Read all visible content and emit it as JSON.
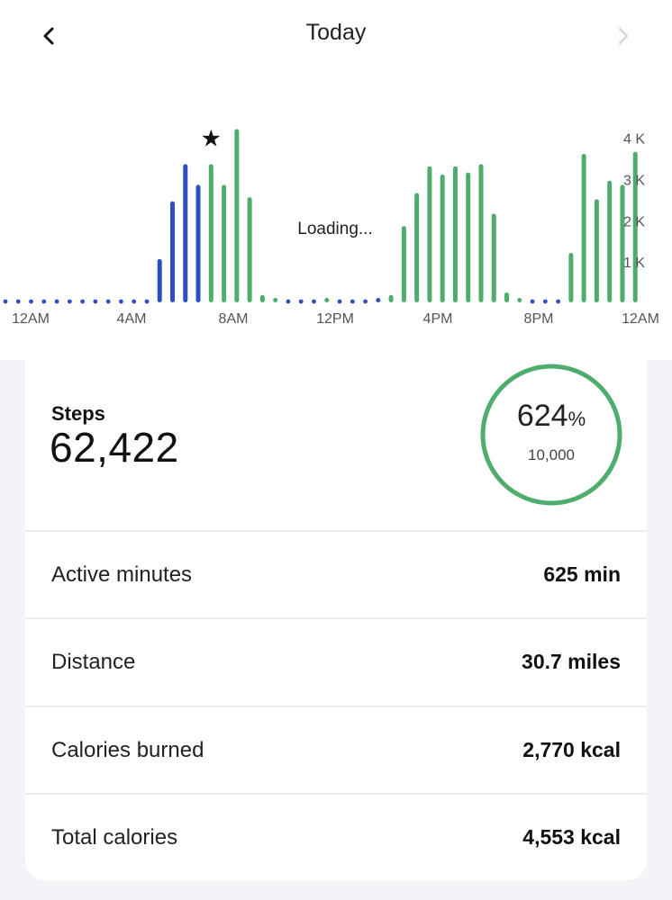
{
  "header": {
    "title": "Today",
    "back_icon": "chevron-left-icon",
    "forward_icon": "chevron-right-icon"
  },
  "chart_data": {
    "type": "bar",
    "title": "",
    "loading_text": "Loading...",
    "x_tick_labels": [
      "12AM",
      "4AM",
      "8AM",
      "12PM",
      "4PM",
      "8PM",
      "12AM"
    ],
    "y_tick_labels": [
      "4 K",
      "3 K",
      "2 K",
      "1 K"
    ],
    "y_ticks": [
      4000,
      3000,
      2000,
      1000
    ],
    "ylim": [
      0,
      4450
    ],
    "x_unit": "half-hour interval of the day (0 = 12AM, 48 = next 12AM)",
    "values": [
      0,
      0,
      0,
      0,
      0,
      0,
      0,
      0,
      0,
      0,
      0,
      0,
      1050,
      2450,
      3350,
      2850,
      3350,
      2850,
      4200,
      2550,
      180,
      90,
      0,
      0,
      0,
      90,
      0,
      0,
      0,
      90,
      180,
      1850,
      2650,
      3300,
      3100,
      3300,
      3150,
      3350,
      2150,
      240,
      90,
      0,
      0,
      0,
      1200,
      3600,
      2500,
      2950,
      2850,
      3650
    ],
    "segments": [
      "blue",
      "blue",
      "blue",
      "blue",
      "blue",
      "blue",
      "blue",
      "blue",
      "blue",
      "blue",
      "blue",
      "blue",
      "blue",
      "blue",
      "blue",
      "blue",
      "green",
      "green",
      "green",
      "green",
      "green",
      "green",
      "blue",
      "blue",
      "blue",
      "green",
      "blue",
      "blue",
      "blue",
      "blue",
      "green",
      "green",
      "green",
      "green",
      "green",
      "green",
      "green",
      "green",
      "green",
      "green",
      "green",
      "blue",
      "blue",
      "blue",
      "green",
      "green",
      "green",
      "green",
      "green",
      "green"
    ],
    "colors": {
      "blue": "#2f4fbf",
      "green": "#4ead6c"
    },
    "star_marker_index": 16,
    "grid": false
  },
  "steps": {
    "label": "Steps",
    "value": "62,422",
    "goal_percent": "624",
    "goal_percent_symbol": "%",
    "goal_target": "10,000",
    "ring_color": "#4ead6c"
  },
  "stats": [
    {
      "label": "Active minutes",
      "value": "625 min"
    },
    {
      "label": "Distance",
      "value": "30.7 miles"
    },
    {
      "label": "Calories burned",
      "value": "2,770 kcal"
    },
    {
      "label": "Total calories",
      "value": "4,553 kcal"
    }
  ]
}
